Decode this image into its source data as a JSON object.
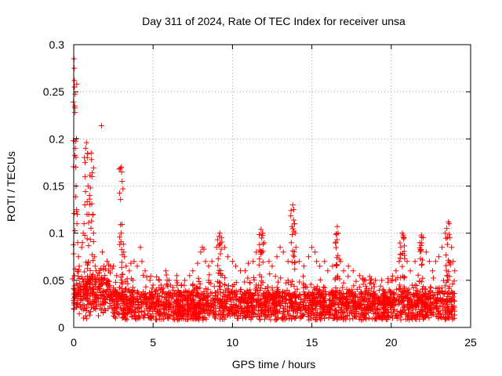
{
  "chart_data": {
    "type": "scatter",
    "title": "Day 311 of 2024, Rate Of TEC Index for receiver unsa",
    "xlabel": "GPS time / hours",
    "ylabel": "ROTI / TECUs",
    "xlim": [
      0,
      25
    ],
    "ylim": [
      0,
      0.3
    ],
    "x_ticks": [
      0,
      5,
      10,
      15,
      20,
      25
    ],
    "x_tick_labels": [
      "0",
      "5",
      "10",
      "15",
      "20",
      "25"
    ],
    "y_ticks": [
      0,
      0.05,
      0.1,
      0.15,
      0.2,
      0.25,
      0.3
    ],
    "y_tick_labels": [
      "0",
      "0.05",
      "0.1",
      "0.15",
      "0.2",
      "0.25",
      "0.3"
    ],
    "grid": true,
    "marker": "+",
    "color": "#ff0000",
    "series": [
      {
        "name": "ROTI",
        "points": [
          [
            0.02,
            0.285
          ],
          [
            0.03,
            0.275
          ],
          [
            0.04,
            0.262
          ],
          [
            0.05,
            0.255
          ],
          [
            0.06,
            0.235
          ],
          [
            0.08,
            0.228
          ],
          [
            0.1,
            0.19
          ],
          [
            0.12,
            0.17
          ],
          [
            0.15,
            0.15
          ],
          [
            0.18,
            0.125
          ],
          [
            0.2,
            0.11
          ],
          [
            0.22,
            0.12
          ],
          [
            0.25,
            0.09
          ],
          [
            0.3,
            0.075
          ],
          [
            0.35,
            0.065
          ],
          [
            0.1,
            0.062
          ],
          [
            0.05,
            0.055
          ],
          [
            0.5,
            0.085
          ],
          [
            0.55,
            0.09
          ],
          [
            0.6,
            0.1
          ],
          [
            0.65,
            0.11
          ],
          [
            0.7,
            0.13
          ],
          [
            0.72,
            0.175
          ],
          [
            0.75,
            0.19
          ],
          [
            0.8,
            0.196
          ],
          [
            0.85,
            0.18
          ],
          [
            0.9,
            0.15
          ],
          [
            0.95,
            0.12
          ],
          [
            1.0,
            0.14
          ],
          [
            1.05,
            0.148
          ],
          [
            1.1,
            0.185
          ],
          [
            1.12,
            0.178
          ],
          [
            1.15,
            0.16
          ],
          [
            1.2,
            0.12
          ],
          [
            1.25,
            0.1
          ],
          [
            1.3,
            0.075
          ],
          [
            1.35,
            0.065
          ],
          [
            1.4,
            0.06
          ],
          [
            1.5,
            0.055
          ],
          [
            1.6,
            0.058
          ],
          [
            1.75,
            0.214
          ],
          [
            1.8,
            0.08
          ],
          [
            1.9,
            0.065
          ],
          [
            2.0,
            0.062
          ],
          [
            2.1,
            0.07
          ],
          [
            2.2,
            0.06
          ],
          [
            2.3,
            0.058
          ],
          [
            2.5,
            0.065
          ],
          [
            2.7,
            0.055
          ],
          [
            2.9,
            0.088
          ],
          [
            2.95,
            0.109
          ],
          [
            3.0,
            0.17
          ],
          [
            3.02,
            0.165
          ],
          [
            3.05,
            0.155
          ],
          [
            3.1,
            0.147
          ],
          [
            3.15,
            0.08
          ],
          [
            3.2,
            0.075
          ],
          [
            3.3,
            0.065
          ],
          [
            3.5,
            0.06
          ],
          [
            3.6,
            0.068
          ],
          [
            3.8,
            0.07
          ],
          [
            4.0,
            0.065
          ],
          [
            4.2,
            0.085
          ],
          [
            4.3,
            0.07
          ],
          [
            4.5,
            0.06
          ],
          [
            4.8,
            0.05
          ],
          [
            5.0,
            0.045
          ],
          [
            5.2,
            0.04
          ],
          [
            5.5,
            0.045
          ],
          [
            5.8,
            0.06
          ],
          [
            6.0,
            0.05
          ],
          [
            6.5,
            0.055
          ],
          [
            6.8,
            0.045
          ],
          [
            7.0,
            0.05
          ],
          [
            7.3,
            0.055
          ],
          [
            7.5,
            0.06
          ],
          [
            7.8,
            0.068
          ],
          [
            8.0,
            0.08
          ],
          [
            8.1,
            0.085
          ],
          [
            8.2,
            0.083
          ],
          [
            8.3,
            0.07
          ],
          [
            8.5,
            0.065
          ],
          [
            8.7,
            0.07
          ],
          [
            9.0,
            0.085
          ],
          [
            9.2,
            0.1
          ],
          [
            9.3,
            0.095
          ],
          [
            9.5,
            0.085
          ],
          [
            9.7,
            0.075
          ],
          [
            10.0,
            0.07
          ],
          [
            10.2,
            0.065
          ],
          [
            10.5,
            0.06
          ],
          [
            10.8,
            0.06
          ],
          [
            11.0,
            0.068
          ],
          [
            11.3,
            0.07
          ],
          [
            11.5,
            0.08
          ],
          [
            11.7,
            0.088
          ],
          [
            11.8,
            0.104
          ],
          [
            11.9,
            0.1
          ],
          [
            12.0,
            0.09
          ],
          [
            12.3,
            0.07
          ],
          [
            12.5,
            0.065
          ],
          [
            12.8,
            0.075
          ],
          [
            13.0,
            0.085
          ],
          [
            13.2,
            0.08
          ],
          [
            13.5,
            0.07
          ],
          [
            13.7,
            0.09
          ],
          [
            13.8,
            0.13
          ],
          [
            13.85,
            0.125
          ],
          [
            13.9,
            0.11
          ],
          [
            13.95,
            0.1
          ],
          [
            14.0,
            0.085
          ],
          [
            14.2,
            0.07
          ],
          [
            14.5,
            0.065
          ],
          [
            14.8,
            0.075
          ],
          [
            15.0,
            0.085
          ],
          [
            15.2,
            0.08
          ],
          [
            15.3,
            0.07
          ],
          [
            15.5,
            0.065
          ],
          [
            15.8,
            0.07
          ],
          [
            16.0,
            0.06
          ],
          [
            16.3,
            0.065
          ],
          [
            16.6,
            0.107
          ],
          [
            16.65,
            0.1
          ],
          [
            16.8,
            0.07
          ],
          [
            17.0,
            0.06
          ],
          [
            17.3,
            0.065
          ],
          [
            17.6,
            0.06
          ],
          [
            18.0,
            0.055
          ],
          [
            18.3,
            0.05
          ],
          [
            18.7,
            0.05
          ],
          [
            19.0,
            0.05
          ],
          [
            19.4,
            0.05
          ],
          [
            19.8,
            0.048
          ],
          [
            20.0,
            0.05
          ],
          [
            20.3,
            0.06
          ],
          [
            20.5,
            0.07
          ],
          [
            20.6,
            0.085
          ],
          [
            20.7,
            0.1
          ],
          [
            20.75,
            0.098
          ],
          [
            20.8,
            0.095
          ],
          [
            21.0,
            0.07
          ],
          [
            21.2,
            0.06
          ],
          [
            21.5,
            0.07
          ],
          [
            21.8,
            0.09
          ],
          [
            21.9,
            0.098
          ],
          [
            22.0,
            0.095
          ],
          [
            22.2,
            0.08
          ],
          [
            22.4,
            0.07
          ],
          [
            22.6,
            0.06
          ],
          [
            22.8,
            0.07
          ],
          [
            23.0,
            0.075
          ],
          [
            23.2,
            0.085
          ],
          [
            23.4,
            0.1
          ],
          [
            23.5,
            0.105
          ],
          [
            23.6,
            0.112
          ],
          [
            23.65,
            0.11
          ],
          [
            23.7,
            0.095
          ],
          [
            23.8,
            0.085
          ],
          [
            23.9,
            0.07
          ],
          [
            24.0,
            0.06
          ],
          [
            0.6,
            0.045
          ],
          [
            1.5,
            0.04
          ],
          [
            2.5,
            0.042
          ],
          [
            3.5,
            0.04
          ],
          [
            4.5,
            0.035
          ],
          [
            6.5,
            0.033
          ],
          [
            7.5,
            0.045
          ],
          [
            8.5,
            0.05
          ],
          [
            9.5,
            0.045
          ],
          [
            10.5,
            0.04
          ],
          [
            11.5,
            0.045
          ],
          [
            12.5,
            0.042
          ],
          [
            13.5,
            0.05
          ],
          [
            14.5,
            0.045
          ],
          [
            15.5,
            0.04
          ],
          [
            16.5,
            0.042
          ],
          [
            17.5,
            0.04
          ],
          [
            18.5,
            0.035
          ],
          [
            19.5,
            0.035
          ],
          [
            20.5,
            0.04
          ],
          [
            21.5,
            0.045
          ],
          [
            22.5,
            0.042
          ],
          [
            23.5,
            0.048
          ]
        ],
        "band_note": "dense floor of points between roughly 0.01 and 0.045 across 0-24 h"
      }
    ]
  }
}
